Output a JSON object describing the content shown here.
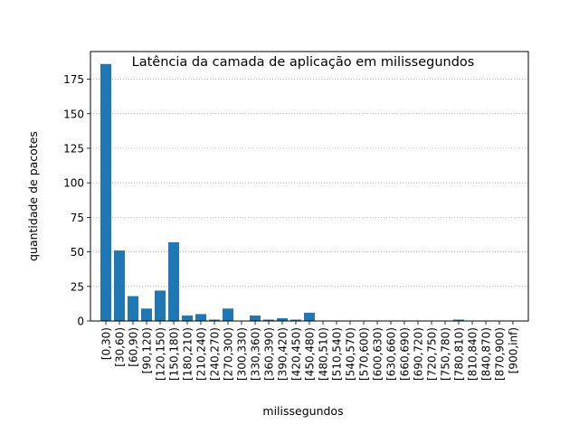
{
  "chart_data": {
    "type": "bar",
    "title": "Latência da camada de aplicação em milissegundos",
    "xlabel": "milissegundos",
    "ylabel": "quantidade de pacotes",
    "ylim": [
      0,
      195
    ],
    "yticks": [
      0,
      25,
      50,
      75,
      100,
      125,
      150,
      175
    ],
    "grid": "y-dotted",
    "bar_color": "#1f77b4",
    "categories": [
      "[0,30)",
      "[30,60)",
      "[60,90)",
      "[90,120)",
      "[120,150)",
      "[150,180)",
      "[180,210)",
      "[210,240)",
      "[240,270)",
      "[270,300)",
      "[300,330)",
      "[330,360)",
      "[360,390)",
      "[390,420)",
      "[420,450)",
      "[450,480)",
      "[480,510)",
      "[510,540)",
      "[540,570)",
      "[570,600)",
      "[600,630)",
      "[630,660)",
      "[660,690)",
      "[690,720)",
      "[720,750)",
      "[750,780)",
      "[780,810)",
      "[810,840)",
      "[840,870)",
      "[870,900)",
      "[900,inf)"
    ],
    "values": [
      186,
      51,
      18,
      9,
      22,
      57,
      4,
      5,
      1,
      9,
      0,
      4,
      1,
      2,
      1,
      6,
      0,
      0,
      0,
      0,
      0,
      0,
      0,
      0,
      0,
      0,
      1,
      0,
      0,
      0,
      0
    ]
  }
}
